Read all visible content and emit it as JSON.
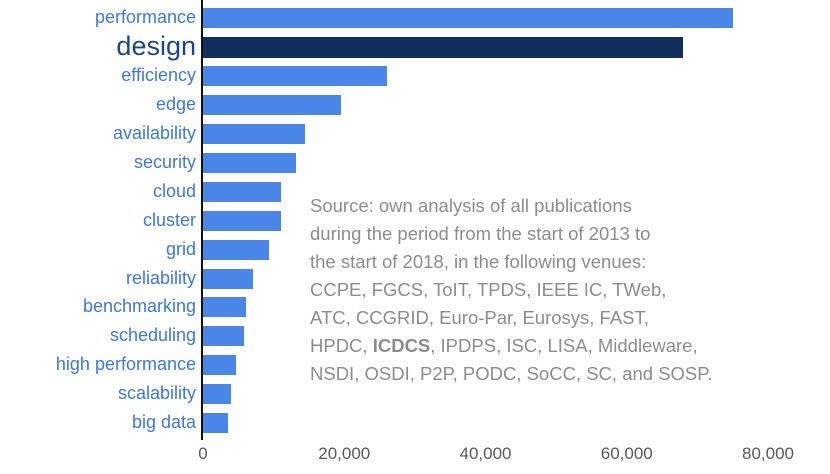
{
  "chart_data": {
    "type": "bar",
    "orientation": "horizontal",
    "categories": [
      "performance",
      "design",
      "efficiency",
      "edge",
      "availability",
      "security",
      "cloud",
      "cluster",
      "grid",
      "reliability",
      "benchmarking",
      "scheduling",
      "high performance",
      "scalability",
      "big data"
    ],
    "values": [
      75000,
      68000,
      26000,
      19500,
      14500,
      13200,
      11000,
      11000,
      9300,
      7100,
      6100,
      5800,
      4700,
      3900,
      3500
    ],
    "highlight_category": "design",
    "title": "",
    "xlabel": "",
    "ylabel": "",
    "xlim": [
      0,
      80000
    ],
    "grid": false,
    "xticks": {
      "values": [
        0,
        20000,
        40000,
        60000,
        80000
      ],
      "labels": [
        "0",
        "20,000",
        "40,000",
        "60,000",
        "80,000"
      ]
    },
    "colors": {
      "bar": "#4a86e8",
      "bar_highlight": "#112f5c",
      "label": "#3c78d8",
      "label_highlight": "#1c4587",
      "axis": "#111111",
      "tick_text": "#595959",
      "annotation_text": "#8c8c8c"
    },
    "annotation": {
      "lines": [
        [
          {
            "t": "Source: own analysis of all publications",
            "b": false
          }
        ],
        [
          {
            "t": "during the period from the start of 2013 to",
            "b": false
          }
        ],
        [
          {
            "t": "the start of 2018, in the following venues:",
            "b": false
          }
        ],
        [
          {
            "t": "CCPE, FGCS, ToIT, TPDS, IEEE IC, TWeb,",
            "b": false
          }
        ],
        [
          {
            "t": "ATC, CCGRID, Euro-Par, Eurosys, FAST,",
            "b": false
          }
        ],
        [
          {
            "t": "HPDC, ",
            "b": false
          },
          {
            "t": "ICDCS",
            "b": true
          },
          {
            "t": ", IPDPS, ISC, LISA, Middleware,",
            "b": false
          }
        ],
        [
          {
            "t": "NSDI, OSDI, P2P, PODC, SoCC, SC, and SOSP.",
            "b": false
          }
        ]
      ]
    }
  }
}
